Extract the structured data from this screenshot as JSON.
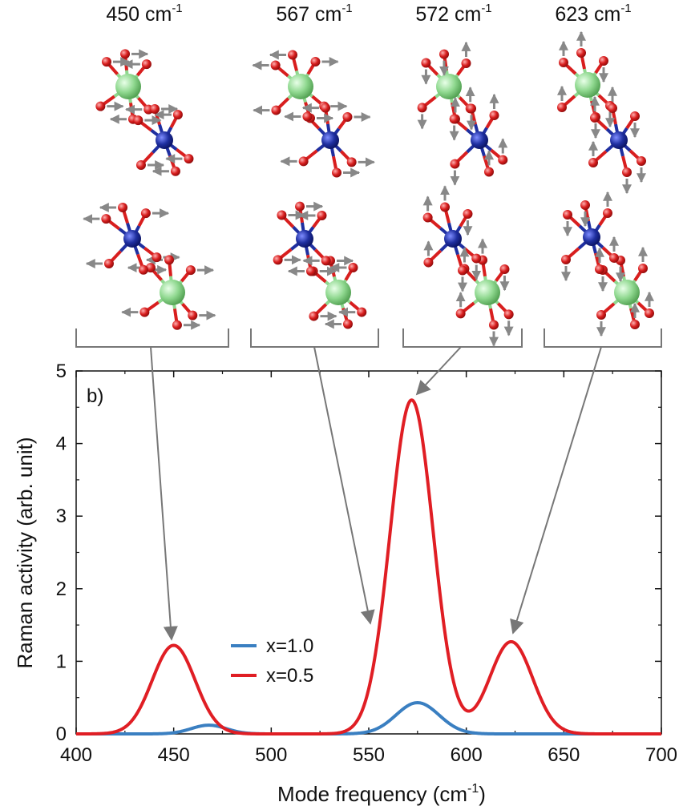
{
  "chart_data": {
    "type": "line",
    "panel_label": "b)",
    "xlabel": "Mode frequency (cm",
    "xlabel_sup": "-1",
    "xlabel_end": ")",
    "ylabel": "Raman activity (arb. unit)",
    "xlim": [
      400,
      700
    ],
    "ylim": [
      0,
      5
    ],
    "xticks": [
      400,
      450,
      500,
      550,
      600,
      650,
      700
    ],
    "yticks": [
      0,
      1,
      2,
      3,
      4,
      5
    ],
    "grid": false,
    "legend_position": "center-left",
    "series": [
      {
        "name": "x=1.0",
        "color": "#3a7fc1",
        "peaks": [
          {
            "center": 468,
            "height": 0.12,
            "width": 9
          },
          {
            "center": 575,
            "height": 0.43,
            "width": 11
          }
        ]
      },
      {
        "name": "x=0.5",
        "color": "#e01e24",
        "peaks": [
          {
            "center": 450,
            "height": 1.22,
            "width": 11
          },
          {
            "center": 572,
            "height": 4.6,
            "width": 11
          },
          {
            "center": 623,
            "height": 1.27,
            "width": 11
          }
        ]
      }
    ],
    "mode_labels": [
      {
        "value": "450 cm",
        "sup": "-1",
        "x": 450,
        "peak_y": 1.22
      },
      {
        "value": "567 cm",
        "sup": "-1",
        "x": 552,
        "peak_y": 1.5
      },
      {
        "value": "572 cm",
        "sup": "-1",
        "x": 572,
        "peak_y": 4.6
      },
      {
        "value": "623 cm",
        "sup": "-1",
        "x": 623,
        "peak_y": 1.27
      }
    ]
  },
  "colors": {
    "arrow": "#777777",
    "bracket": "#777777",
    "octahedron_a": "#8fd88f",
    "octahedron_b": "#1f2fa0",
    "oxygen": "#d81e1e"
  }
}
